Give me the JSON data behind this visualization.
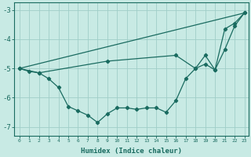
{
  "xlabel": "Humidex (Indice chaleur)",
  "bg_color": "#c8eae4",
  "grid_color": "#a0cec8",
  "line_color": "#1a6b60",
  "xlim": [
    -0.5,
    23.4
  ],
  "ylim": [
    -7.3,
    -2.75
  ],
  "yticks": [
    -7,
    -6,
    -5,
    -4,
    -3
  ],
  "xticks": [
    0,
    1,
    2,
    3,
    4,
    5,
    6,
    7,
    8,
    9,
    10,
    11,
    12,
    13,
    14,
    15,
    16,
    17,
    18,
    19,
    20,
    21,
    22,
    23
  ],
  "line1_x": [
    0,
    1,
    2,
    3,
    4,
    5,
    6,
    7,
    8,
    9,
    10,
    11,
    12,
    13,
    14,
    15,
    16,
    17,
    18,
    19,
    20,
    21,
    22,
    23
  ],
  "line1_y": [
    -5.0,
    -5.1,
    -5.15,
    -5.35,
    -5.65,
    -6.3,
    -6.45,
    -6.6,
    -6.85,
    -6.55,
    -6.35,
    -6.35,
    -6.4,
    -6.35,
    -6.35,
    -6.5,
    -6.1,
    -5.35,
    -5.0,
    -4.85,
    -5.05,
    -3.65,
    -3.45,
    -3.1
  ],
  "line2_x": [
    0,
    23
  ],
  "line2_y": [
    -5.0,
    -3.1
  ],
  "line3_x": [
    0,
    2,
    9,
    16,
    18,
    19,
    20,
    21,
    22,
    23
  ],
  "line3_y": [
    -5.0,
    -5.15,
    -4.75,
    -4.55,
    -5.0,
    -4.55,
    -5.05,
    -4.35,
    -3.55,
    -3.1
  ]
}
